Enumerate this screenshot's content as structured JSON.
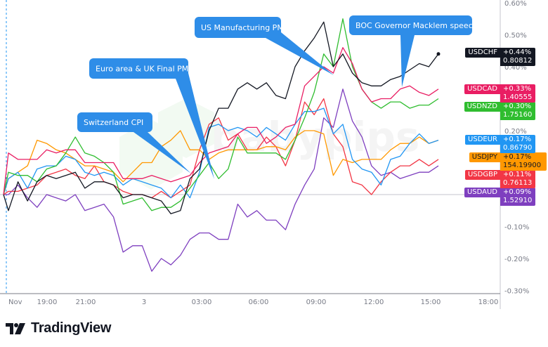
{
  "chart_data": {
    "type": "line",
    "ylabel_unit": "%",
    "y_ticks": [
      "0.60%",
      "0.50%",
      "0.40%",
      "0.20%",
      "-0.10%",
      "-0.20%",
      "-0.30%"
    ],
    "y_tick_values": [
      0.6,
      0.5,
      0.4,
      0.2,
      -0.1,
      -0.2,
      -0.3
    ],
    "ylim": [
      -0.3,
      0.6
    ],
    "x_ticks": [
      "Nov",
      "19:00",
      "21:00",
      "3",
      "03:00",
      "06:00",
      "09:00",
      "12:00",
      "15:00",
      "18:00"
    ],
    "x": [
      "16:45",
      "17:00",
      "17:30",
      "18:00",
      "18:30",
      "19:00",
      "19:30",
      "20:00",
      "20:30",
      "21:00",
      "21:30",
      "22:00",
      "22:30",
      "23:00",
      "23:30",
      "00:00",
      "00:30",
      "01:00",
      "01:30",
      "02:00",
      "02:30",
      "03:00",
      "03:30",
      "04:00",
      "04:30",
      "05:00",
      "05:30",
      "06:00",
      "06:30",
      "07:00",
      "07:30",
      "08:00",
      "08:30",
      "09:00",
      "09:30",
      "10:00",
      "10:30",
      "11:00",
      "11:30",
      "12:00",
      "12:30",
      "13:00",
      "13:30",
      "14:00",
      "14:30",
      "15:00",
      "15:30"
    ],
    "series": [
      {
        "name": "USDAUD",
        "color": "#7e3fbf",
        "change": "+0.09%",
        "price": "1.52910",
        "values": [
          0,
          0.0,
          0.03,
          -0.01,
          -0.04,
          0.0,
          -0.01,
          -0.02,
          0.0,
          -0.05,
          -0.04,
          -0.03,
          -0.07,
          -0.18,
          -0.16,
          -0.16,
          -0.24,
          -0.2,
          -0.22,
          -0.19,
          -0.14,
          -0.12,
          -0.12,
          -0.14,
          -0.14,
          -0.03,
          -0.07,
          -0.05,
          -0.08,
          -0.08,
          -0.11,
          -0.03,
          0.03,
          0.08,
          0.24,
          0.21,
          0.33,
          0.23,
          0.18,
          0.09,
          0.06,
          0.07,
          0.05,
          0.06,
          0.07,
          0.07,
          0.09
        ]
      },
      {
        "name": "USDGBP",
        "color": "#f23645",
        "change": "+0.11%",
        "price": "0.76113",
        "values": [
          0,
          0.01,
          0.01,
          0.02,
          0.03,
          0.06,
          0.07,
          0.08,
          0.06,
          0.05,
          0.09,
          0.04,
          0.03,
          0.01,
          0.0,
          0.0,
          -0.01,
          0.01,
          -0.01,
          0.01,
          0.03,
          0.14,
          0.22,
          0.24,
          0.17,
          0.19,
          0.14,
          0.14,
          0.18,
          0.15,
          0.09,
          0.17,
          0.29,
          0.25,
          0.3,
          0.19,
          0.15,
          0.04,
          0.03,
          0.0,
          0.04,
          0.07,
          0.09,
          0.09,
          0.11,
          0.09,
          0.11
        ]
      },
      {
        "name": "USDJPY",
        "color": "#ff9800",
        "change": "+0.17%",
        "price": "154.19900",
        "values": [
          0,
          0.05,
          0.07,
          0.09,
          0.17,
          0.16,
          0.14,
          0.13,
          0.11,
          0.09,
          0.09,
          0.08,
          0.07,
          0.04,
          0.07,
          0.1,
          0.1,
          0.15,
          0.17,
          0.2,
          0.14,
          0.14,
          0.11,
          0.13,
          0.14,
          0.14,
          0.14,
          0.14,
          0.15,
          0.15,
          0.14,
          0.18,
          0.2,
          0.2,
          0.19,
          0.06,
          0.11,
          0.1,
          0.11,
          0.11,
          0.11,
          0.14,
          0.16,
          0.16,
          0.18,
          0.16,
          0.17
        ]
      },
      {
        "name": "USDEUR",
        "color": "#2196f3",
        "change": "+0.17%",
        "price": "0.86790",
        "values": [
          0,
          0.05,
          0.07,
          0.02,
          0.08,
          0.09,
          0.09,
          0.12,
          0.11,
          0.07,
          0.06,
          0.07,
          0.06,
          0.03,
          0.05,
          0.04,
          0.03,
          0.02,
          -0.01,
          0.03,
          -0.01,
          0.07,
          0.21,
          0.22,
          0.2,
          0.21,
          0.2,
          0.18,
          0.21,
          0.19,
          0.17,
          0.22,
          0.26,
          0.26,
          0.27,
          0.19,
          0.22,
          0.11,
          0.08,
          0.07,
          0.03,
          0.11,
          0.12,
          0.16,
          0.19,
          0.16,
          0.17
        ]
      },
      {
        "name": "USDNZD",
        "color": "#2fbd2f",
        "change": "+0.30%",
        "price": "1.75160",
        "values": [
          0,
          0.07,
          0.06,
          0.06,
          0.04,
          0.08,
          0.09,
          0.13,
          0.18,
          0.13,
          0.12,
          0.1,
          0.07,
          -0.03,
          -0.02,
          -0.01,
          -0.05,
          -0.04,
          -0.04,
          -0.02,
          0.02,
          0.06,
          0.1,
          0.05,
          0.08,
          0.18,
          0.13,
          0.13,
          0.13,
          0.13,
          0.11,
          0.17,
          0.24,
          0.32,
          0.44,
          0.4,
          0.55,
          0.4,
          0.33,
          0.29,
          0.27,
          0.29,
          0.29,
          0.27,
          0.28,
          0.28,
          0.3
        ]
      },
      {
        "name": "USDCAD",
        "color": "#e91e63",
        "change": "+0.33%",
        "price": "1.40555",
        "values": [
          0,
          0.13,
          0.11,
          0.11,
          0.11,
          0.14,
          0.13,
          0.14,
          0.14,
          0.1,
          0.1,
          0.1,
          0.1,
          0.05,
          0.05,
          0.05,
          0.06,
          0.05,
          0.04,
          0.05,
          0.06,
          0.1,
          0.13,
          0.14,
          0.15,
          0.19,
          0.21,
          0.21,
          0.16,
          0.18,
          0.21,
          0.22,
          0.34,
          0.37,
          0.4,
          0.38,
          0.46,
          0.41,
          0.33,
          0.29,
          0.3,
          0.3,
          0.33,
          0.34,
          0.32,
          0.31,
          0.33
        ]
      },
      {
        "name": "USDCHF",
        "color": "#131722",
        "change": "+0.44%",
        "price": "0.80812",
        "values": [
          0,
          -0.05,
          0.04,
          -0.02,
          0.04,
          0.06,
          0.05,
          0.06,
          0.07,
          0.02,
          0.04,
          0.04,
          0.03,
          -0.01,
          0.0,
          0.0,
          -0.01,
          -0.02,
          -0.06,
          -0.05,
          0.05,
          0.08,
          0.2,
          0.27,
          0.27,
          0.33,
          0.35,
          0.33,
          0.35,
          0.31,
          0.3,
          0.4,
          0.45,
          0.49,
          0.54,
          0.4,
          0.44,
          0.38,
          0.35,
          0.34,
          0.34,
          0.36,
          0.37,
          0.39,
          0.41,
          0.4,
          0.44
        ]
      }
    ],
    "annotations": [
      {
        "text": "Switzerland CPI",
        "at": "03:00"
      },
      {
        "text": "Euro area & UK Final PMIs",
        "at": "03:00"
      },
      {
        "text": "US Manufacturing PMI",
        "at": "10:00"
      },
      {
        "text": "BOC Governor Macklem speech",
        "at": "13:30"
      }
    ],
    "annotation_color": "#2e8de8",
    "grid": false,
    "legend": "right-axis-labels"
  },
  "branding": {
    "name": "TradingView"
  },
  "watermark": "babypips"
}
